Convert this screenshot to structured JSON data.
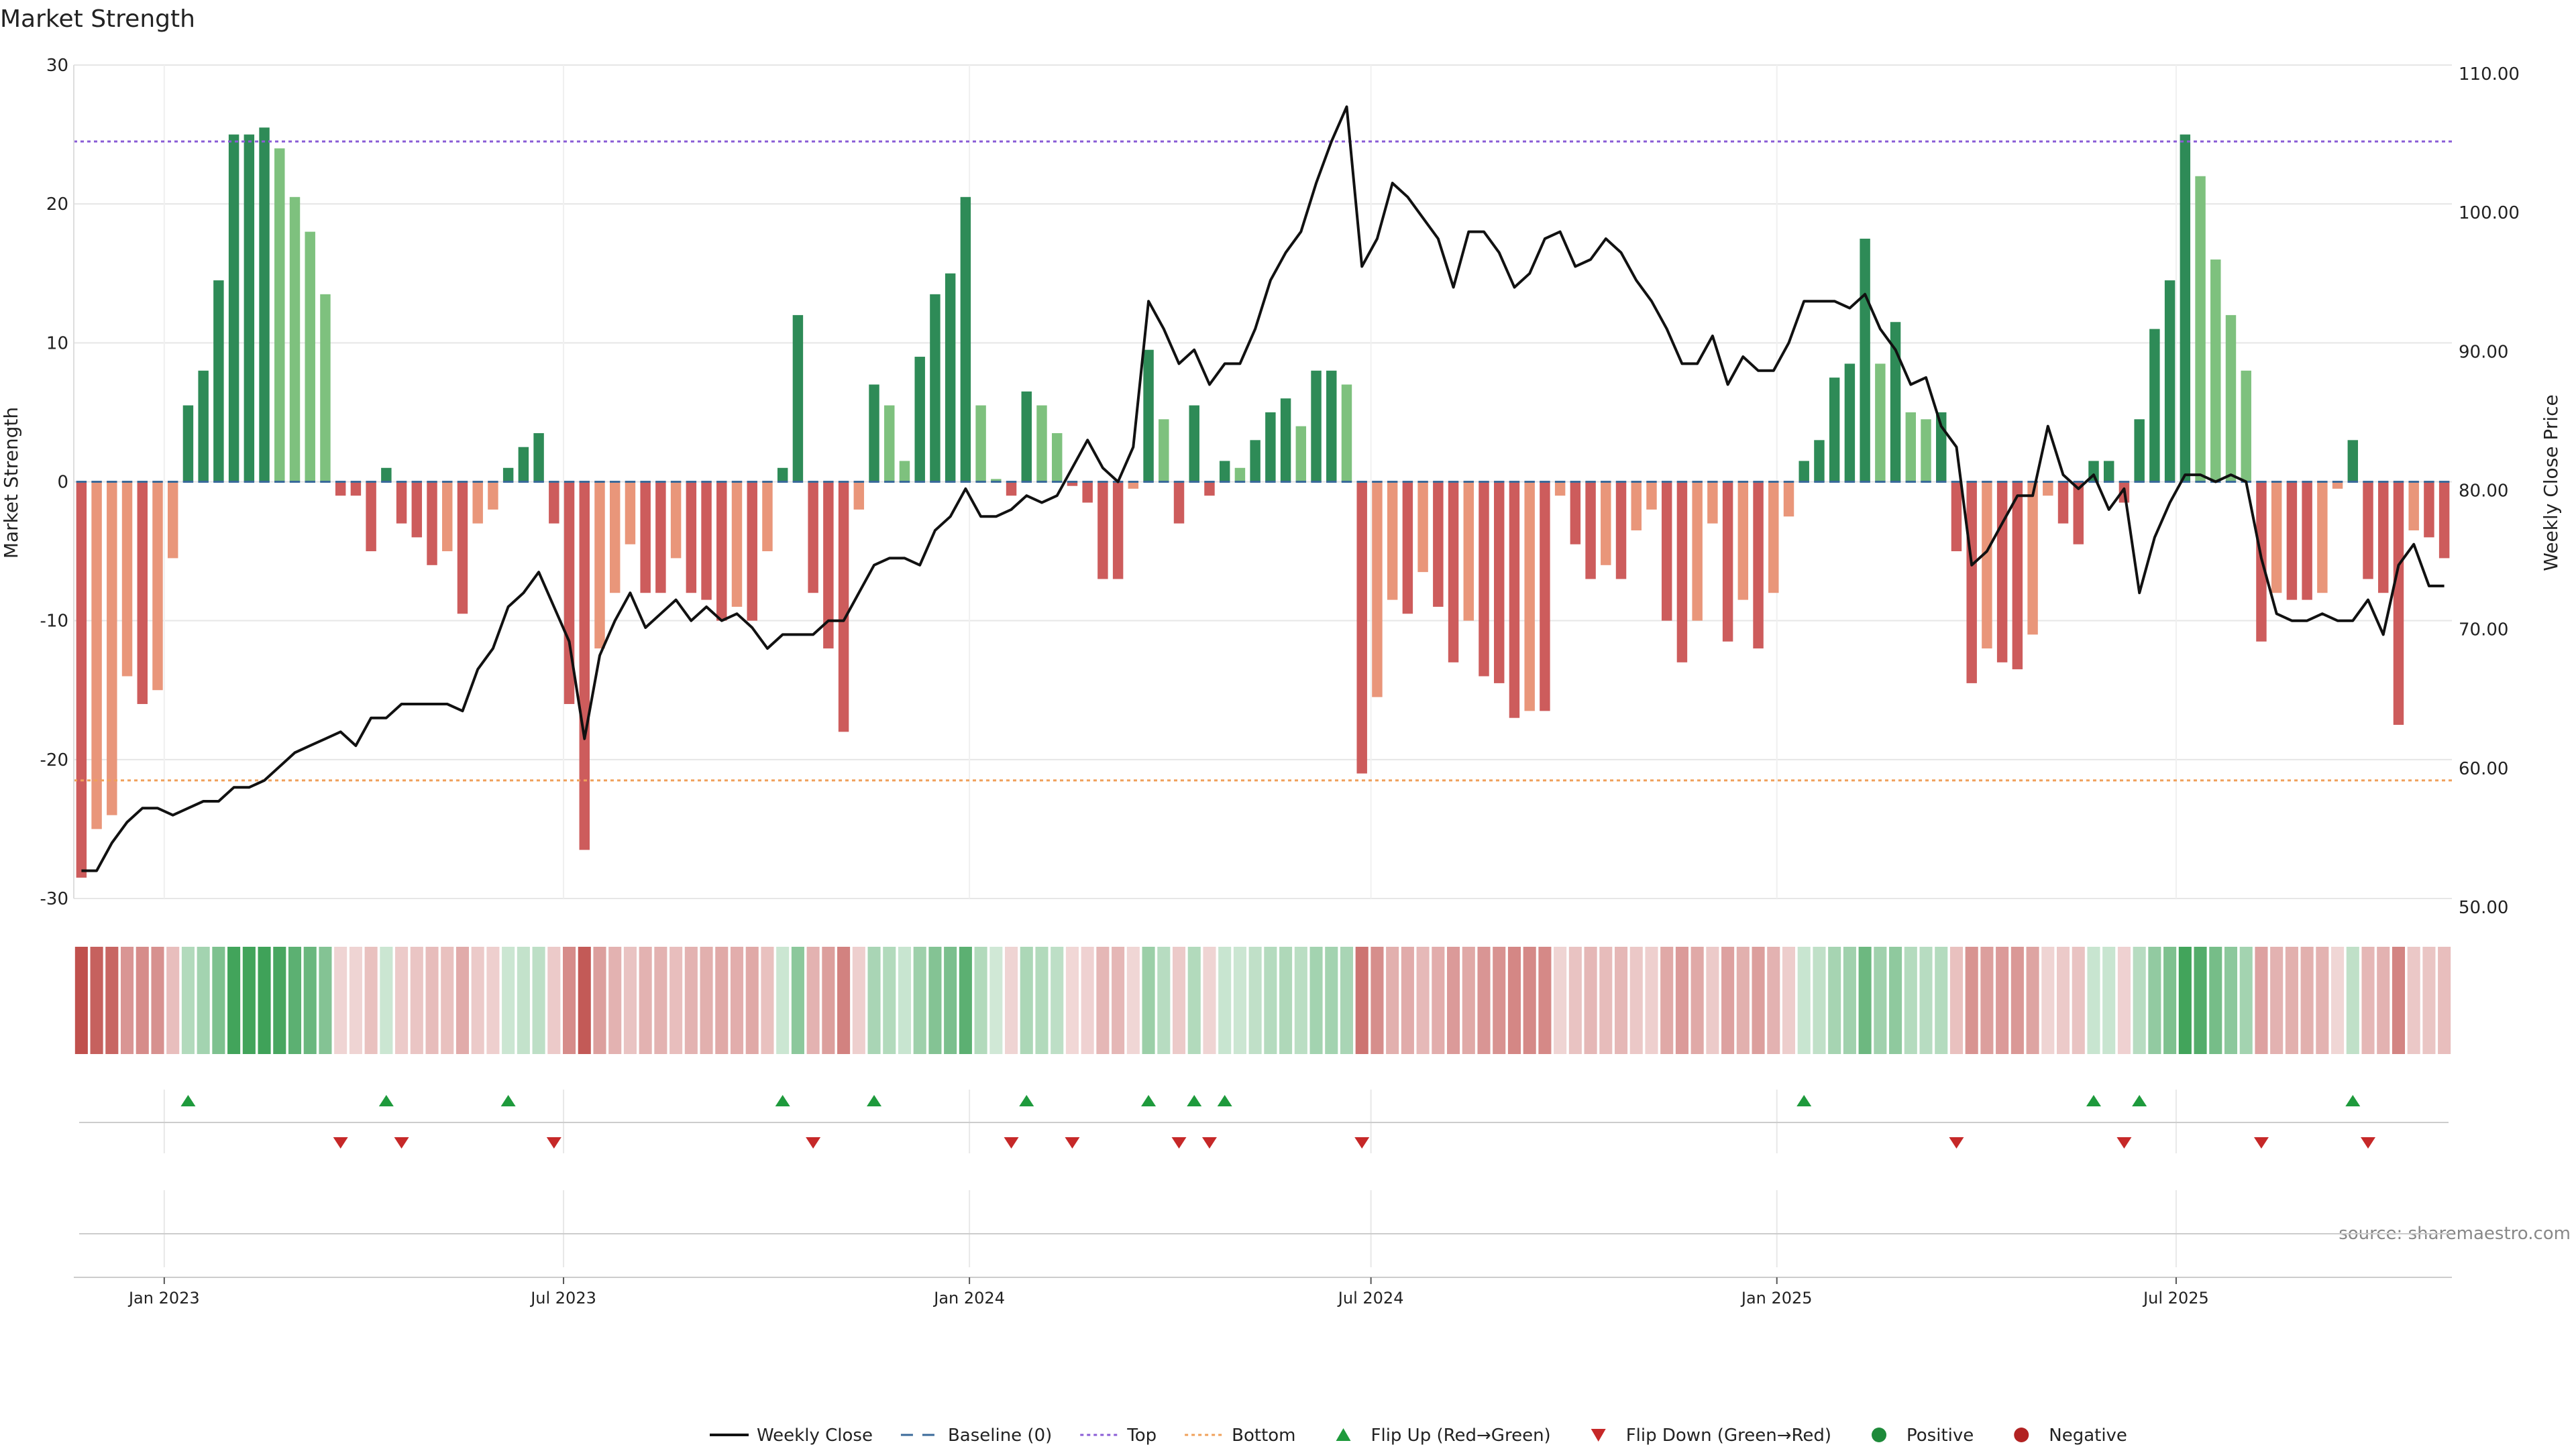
{
  "chart_data": {
    "type": "bar",
    "title": "Market Strength",
    "ylabel": "Market Strength",
    "y2label": "Weekly Close Price",
    "ylim": [
      -30,
      30
    ],
    "y2lim": [
      50,
      110
    ],
    "yticks": [
      -30,
      -20,
      -10,
      0,
      10,
      20,
      30
    ],
    "y2ticks": [
      "50.00",
      "60.00",
      "70.00",
      "80.00",
      "90.00",
      "100.00",
      "110.00"
    ],
    "x_start": "2022-11-21",
    "x_end": "2025-11-03",
    "xticks": [
      {
        "date": "2023-01-01",
        "label": "Jan 2023"
      },
      {
        "date": "2023-07-01",
        "label": "Jul 2023"
      },
      {
        "date": "2024-01-01",
        "label": "Jan 2024"
      },
      {
        "date": "2024-07-01",
        "label": "Jul 2024"
      },
      {
        "date": "2025-01-01",
        "label": "Jan 2025"
      },
      {
        "date": "2025-07-01",
        "label": "Jul 2025"
      }
    ],
    "top_line": 24.5,
    "bottom_line": -21.5,
    "grid": true,
    "source": "source: sharemaestro.com",
    "strength": [
      -28.5,
      -25,
      -24,
      -14,
      -16,
      -15,
      -5.5,
      5.5,
      8,
      14.5,
      25,
      25,
      25.5,
      24,
      20.5,
      18,
      13.5,
      -1,
      -1,
      -5,
      1,
      -3,
      -4,
      -6,
      -5,
      -9.5,
      -3,
      -2,
      1,
      2.5,
      3.5,
      -3,
      -16,
      -26.5,
      -12,
      -8,
      -4.5,
      -8,
      -8,
      -5.5,
      -8,
      -8.5,
      -10,
      -9,
      -10,
      -5,
      1,
      12,
      -8,
      -12,
      -18,
      -2,
      7,
      5.5,
      1.5,
      9,
      13.5,
      15,
      20.5,
      5.5,
      0.2,
      -1,
      6.5,
      5.5,
      3.5,
      -0.3,
      -1.5,
      -7,
      -7,
      -0.5,
      9.5,
      4.5,
      -3,
      5.5,
      -1,
      1.5,
      1,
      3,
      5,
      6,
      4,
      8,
      8,
      7,
      -21,
      -15.5,
      -8.5,
      -9.5,
      -6.5,
      -9,
      -13,
      -10,
      -14,
      -14.5,
      -17,
      -16.5,
      -16.5,
      -1,
      -4.5,
      -7,
      -6,
      -7,
      -3.5,
      -2,
      -10,
      -13,
      -10,
      -3,
      -11.5,
      -8.5,
      -12,
      -8,
      -2.5,
      1.5,
      3,
      7.5,
      8.5,
      17.5,
      8.5,
      11.5,
      5,
      4.5,
      5,
      -5,
      -14.5,
      -12,
      -13,
      -13.5,
      -11,
      -1,
      -3,
      -4.5,
      1.5,
      1.5,
      -1.5,
      4.5,
      11,
      14.5,
      25,
      22,
      16,
      12,
      8,
      -11.5,
      -8,
      -8.5,
      -8.5,
      -8,
      -0.5,
      3,
      -7,
      -8,
      -17.5,
      -3.5,
      -4,
      -5.5
    ],
    "close": [
      52,
      52,
      54,
      55.5,
      56.5,
      56.5,
      56,
      56.5,
      57,
      57,
      58,
      58,
      58.5,
      59.5,
      60.5,
      61,
      61.5,
      62,
      61,
      63,
      63,
      64,
      64,
      64,
      64,
      63.5,
      66.5,
      68,
      71,
      72,
      73.5,
      71,
      68.5,
      61.5,
      67.5,
      70,
      72,
      69.5,
      70.5,
      71.5,
      70,
      71,
      70,
      70.5,
      69.5,
      68,
      69,
      69,
      69,
      70,
      70,
      72,
      74,
      74.5,
      74.5,
      74,
      76.5,
      77.5,
      79.5,
      77.5,
      77.5,
      78,
      79,
      78.5,
      79,
      81,
      83,
      81,
      80,
      82.5,
      93,
      91,
      88.5,
      89.5,
      87,
      88.5,
      88.5,
      91,
      94.5,
      96.5,
      98,
      101.5,
      104.5,
      107,
      95.5,
      97.5,
      101.5,
      100.5,
      99,
      97.5,
      94,
      98,
      98,
      96.5,
      94,
      95,
      97.5,
      98,
      95.5,
      96,
      97.5,
      96.5,
      94.5,
      93,
      91,
      88.5,
      88.5,
      90.5,
      87,
      89,
      88,
      88,
      90,
      93,
      93,
      93,
      92.5,
      93.5,
      91,
      89.5,
      87,
      87.5,
      84,
      82.5,
      74,
      75,
      77,
      79,
      79,
      84,
      80.5,
      79.5,
      80.5,
      78,
      79.5,
      72,
      76,
      78.5,
      80.5,
      80.5,
      80,
      80.5,
      80,
      74.5,
      70.5,
      70,
      70,
      70.5,
      70,
      70,
      71.5,
      69,
      74,
      75.5,
      72.5,
      72.5
    ]
  },
  "legend": [
    {
      "label": "Weekly Close",
      "symbol": "line",
      "color": "#111111"
    },
    {
      "label": "Baseline (0)",
      "symbol": "dash",
      "color": "#3a6a9a"
    },
    {
      "label": "Top",
      "symbol": "dotted",
      "color": "#8a5cd6"
    },
    {
      "label": "Bottom",
      "symbol": "dotted",
      "color": "#f0a05a"
    },
    {
      "label": "Flip Up (Red→Green)",
      "symbol": "triangle-up",
      "color": "#1e9a3c"
    },
    {
      "label": "Flip Down (Green→Red)",
      "symbol": "triangle-down",
      "color": "#c62828"
    },
    {
      "label": "Positive",
      "symbol": "circle",
      "color": "#1e8a3a"
    },
    {
      "label": "Negative",
      "symbol": "circle",
      "color": "#b22222"
    }
  ],
  "colors": {
    "pos_strong": "#2e8b57",
    "pos_weak": "#7ec17e",
    "neg_strong": "#cd5c5c",
    "neg_weak": "#e9967a",
    "top": "#8a5cd6",
    "bottom": "#f0a05a"
  }
}
